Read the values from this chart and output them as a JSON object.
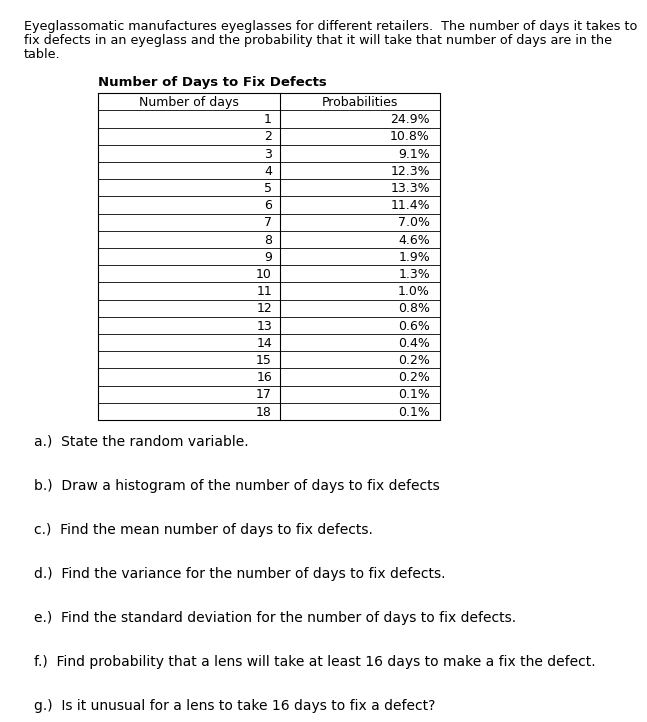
{
  "intro_line1": "Eyeglassomatic manufactures eyeglasses for different retailers.  The number of days it takes to",
  "intro_line2": "fix defects in an eyeglass and the probability that it will take that number of days are in the",
  "intro_line3": "table.",
  "table_title": "Number of Days to Fix Defects",
  "col_headers": [
    "Number of days",
    "Probabilities"
  ],
  "days": [
    1,
    2,
    3,
    4,
    5,
    6,
    7,
    8,
    9,
    10,
    11,
    12,
    13,
    14,
    15,
    16,
    17,
    18
  ],
  "probabilities": [
    "24.9%",
    "10.8%",
    "9.1%",
    "12.3%",
    "13.3%",
    "11.4%",
    "7.0%",
    "4.6%",
    "1.9%",
    "1.3%",
    "1.0%",
    "0.8%",
    "0.6%",
    "0.4%",
    "0.2%",
    "0.2%",
    "0.1%",
    "0.1%"
  ],
  "questions": [
    "a.)  State the random variable.",
    "b.)  Draw a histogram of the number of days to fix defects",
    "c.)  Find the mean number of days to fix defects.",
    "d.)  Find the variance for the number of days to fix defects.",
    "e.)  Find the standard deviation for the number of days to fix defects.",
    "f.)  Find probability that a lens will take at least 16 days to make a fix the defect.",
    "g.)  Is it unusual for a lens to take 16 days to fix a defect?"
  ],
  "bg_color": "#ffffff",
  "text_color": "#000000",
  "intro_fontsize": 9.2,
  "title_fontsize": 9.5,
  "table_fontsize": 9.0,
  "question_fontsize": 10.0
}
